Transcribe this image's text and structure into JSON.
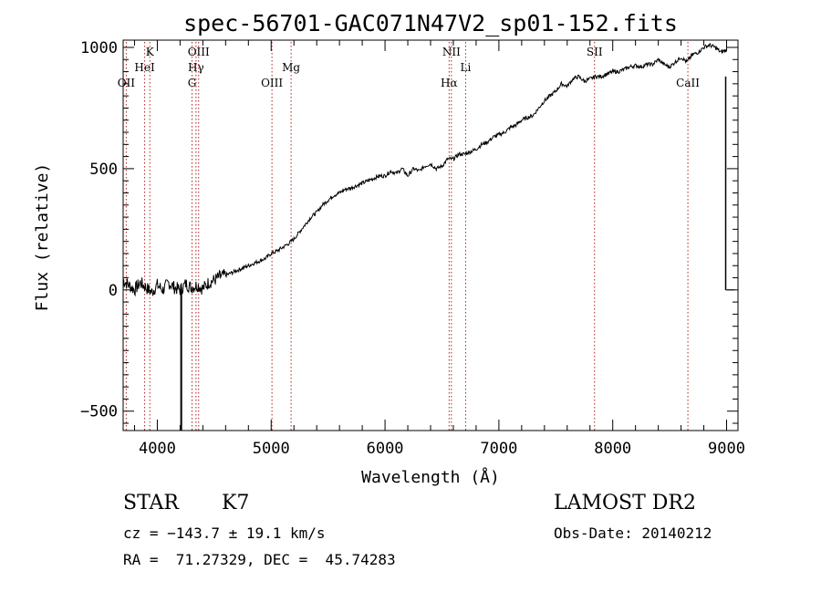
{
  "chart_data": {
    "type": "line",
    "title": "spec-56701-GAC071N47V2_sp01-152.fits",
    "xlabel": "Wavelength (Å)",
    "ylabel": "Flux (relative)",
    "xlim": [
      3700,
      9100
    ],
    "ylim": [
      -580,
      1030
    ],
    "x_ticks": [
      4000,
      5000,
      6000,
      7000,
      8000,
      9000
    ],
    "x_tick_labels": [
      "4000",
      "5000",
      "6000",
      "7000",
      "8000",
      "9000"
    ],
    "y_ticks": [
      -500,
      0,
      500,
      1000
    ],
    "y_tick_labels": [
      "−500",
      "0",
      "500",
      "1000"
    ],
    "grid": false,
    "line_color": "#000000",
    "marker_color": "#b22222",
    "series": [
      {
        "x": [
          3700,
          3750,
          3800,
          3850,
          3900,
          3950,
          4000,
          4050,
          4100,
          4150,
          4200,
          4250,
          4300,
          4350,
          4400,
          4450,
          4500,
          4550,
          4600,
          4650,
          4700,
          4750,
          4800,
          4850,
          4900,
          4950,
          5000,
          5050,
          5100,
          5150,
          5200,
          5250,
          5300,
          5350,
          5400,
          5450,
          5500,
          5550,
          5600,
          5650,
          5700,
          5750,
          5800,
          5850,
          5900,
          5950,
          6000,
          6050,
          6100,
          6150,
          6200,
          6250,
          6300,
          6350,
          6400,
          6450,
          6500,
          6550,
          6600,
          6650,
          6700,
          6750,
          6800,
          6850,
          6900,
          6950,
          7000,
          7050,
          7100,
          7150,
          7200,
          7250,
          7300,
          7350,
          7400,
          7450,
          7500,
          7550,
          7600,
          7650,
          7700,
          7750,
          7800,
          7850,
          7900,
          7950,
          8000,
          8050,
          8100,
          8150,
          8200,
          8250,
          8300,
          8350,
          8400,
          8450,
          8500,
          8550,
          8600,
          8650,
          8700,
          8750,
          8800,
          8850,
          8900,
          8950,
          9000
        ],
        "y": [
          40,
          20,
          0,
          30,
          10,
          -10,
          20,
          0,
          30,
          10,
          0,
          25,
          10,
          20,
          5,
          30,
          40,
          55,
          60,
          70,
          80,
          90,
          100,
          110,
          120,
          130,
          150,
          160,
          175,
          190,
          210,
          240,
          270,
          300,
          320,
          350,
          370,
          390,
          400,
          415,
          420,
          430,
          440,
          450,
          460,
          470,
          470,
          490,
          480,
          500,
          470,
          500,
          490,
          510,
          520,
          500,
          510,
          540,
          540,
          560,
          560,
          570,
          580,
          600,
          610,
          630,
          640,
          650,
          670,
          680,
          700,
          710,
          720,
          750,
          780,
          800,
          820,
          850,
          840,
          870,
          880,
          860,
          870,
          880,
          880,
          890,
          900,
          900,
          910,
          920,
          925,
          920,
          930,
          930,
          950,
          930,
          920,
          940,
          960,
          940,
          970,
          980,
          1000,
          1010,
          1000,
          980,
          990
        ]
      }
    ],
    "spike_x": 4210,
    "spike_min_y": -580,
    "edge_x": 9000,
    "edge_y_top": 880,
    "edge_y_bottom": 0,
    "lines": [
      {
        "label": "OII",
        "x": 3727,
        "row": 3
      },
      {
        "label": "K",
        "x": 3934,
        "row": 1
      },
      {
        "label": "HeI",
        "x": 3889,
        "row": 2
      },
      {
        "label": "OIII",
        "x": 4363,
        "row": 1
      },
      {
        "label": "Hγ",
        "x": 4340,
        "row": 2
      },
      {
        "label": "G",
        "x": 4305,
        "row": 3
      },
      {
        "label": "OIII",
        "x": 5007,
        "row": 3
      },
      {
        "label": "Mg",
        "x": 5175,
        "row": 2
      },
      {
        "label": "NII",
        "x": 6583,
        "row": 1
      },
      {
        "label": "Hα",
        "x": 6563,
        "row": 3
      },
      {
        "label": "Li",
        "x": 6708,
        "row": 2
      },
      {
        "label": "SII",
        "x": 7840,
        "row": 1
      },
      {
        "label": "CaII",
        "x": 8660,
        "row": 3
      }
    ]
  },
  "info": {
    "object_class": "STAR",
    "subclass": "K7",
    "survey": "LAMOST DR2",
    "cz": "cz = −143.7 ± 19.1 km/s",
    "obs_date": "Obs-Date: 20140212",
    "coords": "RA =  71.27329, DEC =  45.74283"
  }
}
